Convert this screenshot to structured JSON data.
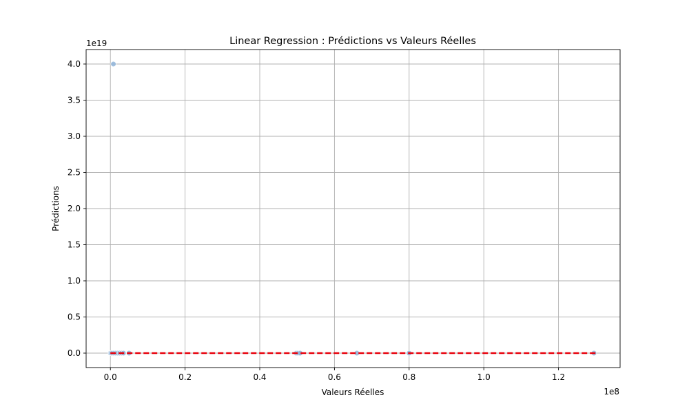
{
  "chart_data": {
    "type": "scatter",
    "title": "Linear Regression : Prédictions vs Valeurs Réelles",
    "xlabel": "Valeurs Réelles",
    "ylabel": "Prédictions",
    "x_offset_label": "1e8",
    "y_offset_label": "1e19",
    "xlim": [
      -6500000,
      136500000
    ],
    "ylim": [
      -2000000000000000000,
      42000000000000000000
    ],
    "x_ticks": [
      {
        "value": 0,
        "label": "0.0"
      },
      {
        "value": 20000000,
        "label": "0.2"
      },
      {
        "value": 40000000,
        "label": "0.4"
      },
      {
        "value": 60000000,
        "label": "0.6"
      },
      {
        "value": 80000000,
        "label": "0.8"
      },
      {
        "value": 100000000,
        "label": "1.0"
      },
      {
        "value": 120000000,
        "label": "1.2"
      }
    ],
    "y_ticks": [
      {
        "value": 0,
        "label": "0.0"
      },
      {
        "value": 5000000000000000000,
        "label": "0.5"
      },
      {
        "value": 10000000000000000000,
        "label": "1.0"
      },
      {
        "value": 15000000000000000000,
        "label": "1.5"
      },
      {
        "value": 20000000000000000000,
        "label": "2.0"
      },
      {
        "value": 25000000000000000000,
        "label": "2.5"
      },
      {
        "value": 30000000000000000000,
        "label": "3.0"
      },
      {
        "value": 35000000000000000000,
        "label": "3.5"
      },
      {
        "value": 40000000000000000000,
        "label": "4.0"
      }
    ],
    "grid": true,
    "points_color": "#8fb4d9",
    "reference_line_color": "#e8000b",
    "reference_line": {
      "x": [
        0,
        130000000
      ],
      "y": [
        0,
        0
      ]
    },
    "points": [
      {
        "x": 0,
        "y": 0
      },
      {
        "x": 200000,
        "y": 0
      },
      {
        "x": 500000,
        "y": 0
      },
      {
        "x": 800000,
        "y": 40000000000000000000
      },
      {
        "x": 1000000,
        "y": 0
      },
      {
        "x": 1500000,
        "y": 0
      },
      {
        "x": 2000000,
        "y": 0
      },
      {
        "x": 2500000,
        "y": 0
      },
      {
        "x": 3000000,
        "y": 0
      },
      {
        "x": 3500000,
        "y": 0
      },
      {
        "x": 5000000,
        "y": 0
      },
      {
        "x": 49800000,
        "y": 0
      },
      {
        "x": 50300000,
        "y": 0
      },
      {
        "x": 50800000,
        "y": 0
      },
      {
        "x": 66000000,
        "y": 0
      },
      {
        "x": 80000000,
        "y": 0
      },
      {
        "x": 129500000,
        "y": 0
      }
    ]
  }
}
